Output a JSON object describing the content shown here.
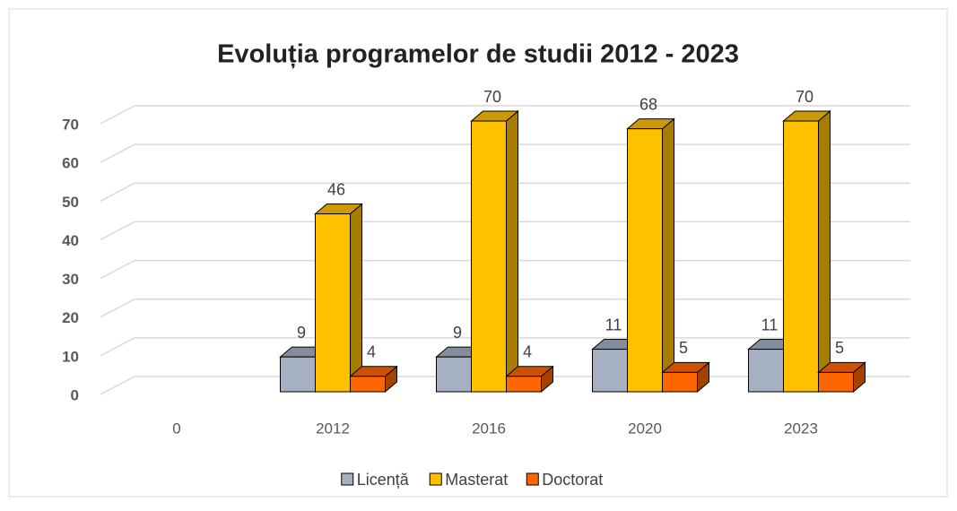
{
  "chart_data": {
    "type": "bar3d",
    "title": "Evoluția programelor de studii 2012 - 2023",
    "categories": [
      "0",
      "2012",
      "2016",
      "2020",
      "2023"
    ],
    "series": [
      {
        "name": "Licență",
        "color": "#a5b0c3",
        "values": [
          null,
          9,
          9,
          11,
          11
        ]
      },
      {
        "name": "Masterat",
        "color": "#ffc000",
        "values": [
          null,
          46,
          70,
          68,
          70
        ]
      },
      {
        "name": "Doctorat",
        "color": "#ff6600",
        "values": [
          null,
          4,
          4,
          5,
          5
        ]
      }
    ],
    "ylim": [
      0,
      70
    ],
    "yticks": [
      0,
      10,
      20,
      30,
      40,
      50,
      60,
      70
    ],
    "grid": true,
    "legend": "bottom"
  }
}
